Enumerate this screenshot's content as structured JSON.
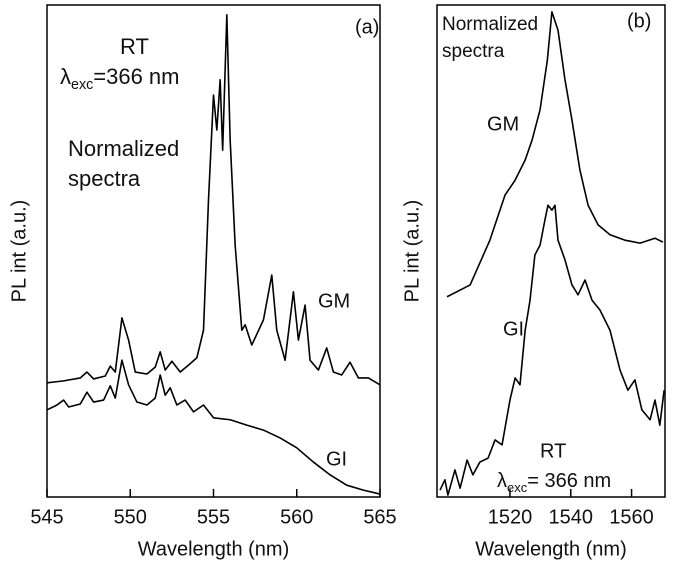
{
  "chart_data": [
    {
      "type": "line",
      "xlabel": "Wavelength (nm)",
      "ylabel": "PL int (a.u.)",
      "xlim": [
        545,
        565
      ],
      "xticks": [
        545,
        550,
        555,
        560,
        565
      ],
      "ylim": [
        0,
        100
      ],
      "annotations": [
        {
          "text": "(a)"
        },
        {
          "text": "RT"
        },
        {
          "symbol": "λ",
          "subscript": "exc",
          "text": "=366 nm"
        },
        {
          "text": "Normalized"
        },
        {
          "text": "spectra"
        }
      ],
      "series": [
        {
          "name": "GM",
          "color": "#000000",
          "x": [
            545.0,
            546.0,
            547.0,
            547.4,
            547.8,
            548.5,
            548.8,
            549.1,
            549.5,
            549.9,
            550.3,
            551.0,
            551.5,
            551.8,
            552.1,
            552.5,
            553.0,
            553.5,
            554.0,
            554.4,
            554.7,
            555.0,
            555.2,
            555.4,
            555.55,
            555.8,
            556.0,
            556.3,
            556.7,
            556.9,
            557.3,
            558.0,
            558.5,
            558.8,
            559.3,
            559.8,
            560.1,
            560.5,
            560.8,
            561.3,
            561.8,
            562.2,
            562.7,
            563.2,
            563.7,
            564.3,
            565.0
          ],
          "values": [
            23.2,
            23.6,
            24.2,
            25.4,
            24,
            24.6,
            26.6,
            25.4,
            36.4,
            31.9,
            25.4,
            25,
            26.4,
            29.5,
            25.8,
            27.6,
            25.4,
            26.8,
            28.3,
            33.9,
            60.4,
            81.7,
            74.6,
            84.8,
            70.5,
            98,
            72.6,
            51.2,
            33.9,
            35,
            30.9,
            36,
            45.1,
            33.9,
            27.8,
            41.7,
            31.9,
            39,
            27.8,
            25.8,
            30.3,
            25.4,
            24.8,
            27.4,
            24.2,
            24.2,
            22.8
          ]
        },
        {
          "name": "GI",
          "color": "#000000",
          "x": [
            545.0,
            545.6,
            546.0,
            546.3,
            547.0,
            547.4,
            547.8,
            548.4,
            548.8,
            549.1,
            549.5,
            549.9,
            550.4,
            551.0,
            551.5,
            551.8,
            552.1,
            552.4,
            552.8,
            553.3,
            553.8,
            554.4,
            555.0,
            556.0,
            557.0,
            558.0,
            559.0,
            560.0,
            561.0,
            562.0,
            563.0,
            564.0,
            565.0
          ],
          "values": [
            17.7,
            18.7,
            19.7,
            18.3,
            18.9,
            21.3,
            19.3,
            19.7,
            22.6,
            20.1,
            27.8,
            22.8,
            19.3,
            18.7,
            20.1,
            24.8,
            20.7,
            22.2,
            18.7,
            19.7,
            17.3,
            18.7,
            16.1,
            15.7,
            14.6,
            13.6,
            12,
            10,
            7.1,
            4.5,
            2.4,
            1.4,
            0.6
          ]
        }
      ]
    },
    {
      "type": "line",
      "xlabel": "Wavelength (nm)",
      "ylabel": "PL int (a.u.)",
      "xlim": [
        1496,
        1571
      ],
      "xticks": [
        1520,
        1540,
        1560
      ],
      "ylim": [
        0,
        100
      ],
      "annotations": [
        {
          "text": "(b)"
        },
        {
          "text": "Normalized"
        },
        {
          "text": "spectra"
        },
        {
          "text": "RT"
        },
        {
          "symbol": "λ",
          "subscript": "exc",
          "text": "= 366 nm"
        }
      ],
      "series": [
        {
          "name": "GM",
          "color": "#000000",
          "x": [
            1499.3,
            1506.9,
            1513.4,
            1518.4,
            1521.7,
            1525,
            1527.3,
            1529.9,
            1532.3,
            1533.8,
            1535.8,
            1538.1,
            1540.4,
            1543,
            1545.7,
            1549,
            1552.9,
            1557.8,
            1562.8,
            1567.7,
            1570.3
          ],
          "values": [
            40.7,
            43.1,
            52.2,
            61.4,
            64.4,
            68.5,
            72.6,
            78.7,
            88.8,
            98.6,
            94.9,
            84.8,
            76.6,
            66.5,
            59.3,
            55.3,
            53.3,
            52.2,
            51.6,
            52.6,
            51.8
          ]
        },
        {
          "name": "GI",
          "color": "#000000",
          "x": [
            1497,
            1498.6,
            1499.6,
            1501.9,
            1503.6,
            1505.9,
            1507.8,
            1510.1,
            1512.8,
            1515.1,
            1517.4,
            1520,
            1521.7,
            1523.3,
            1525,
            1526.6,
            1528.2,
            1529.9,
            1531.5,
            1532.5,
            1533.8,
            1534.8,
            1535.8,
            1538.1,
            1540.4,
            1542.4,
            1544.7,
            1547,
            1549.6,
            1552.9,
            1556.2,
            1558.8,
            1561.1,
            1563.4,
            1566.1,
            1567.7,
            1569.3,
            1570.7
          ],
          "values": [
            1.4,
            3.5,
            0.4,
            5.5,
            1.8,
            7.5,
            4.5,
            7.1,
            7.9,
            11.6,
            10.6,
            19.7,
            24.2,
            22.8,
            33.9,
            40,
            49.2,
            51.2,
            56.3,
            59.3,
            58.3,
            59.3,
            52.2,
            48.2,
            43.1,
            41.1,
            44.1,
            40,
            38,
            33.9,
            25.8,
            21.7,
            23.8,
            17.7,
            15.7,
            19.7,
            14.6,
            21.7
          ]
        }
      ]
    }
  ]
}
